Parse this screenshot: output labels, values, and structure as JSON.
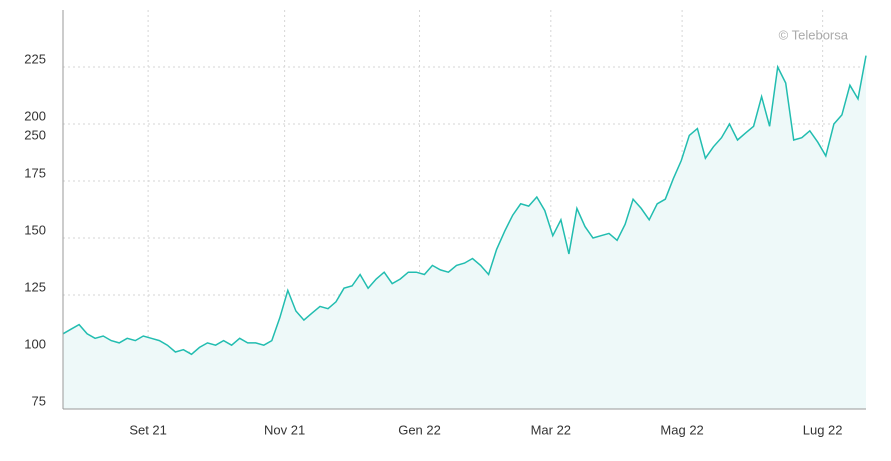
{
  "chart_data": {
    "type": "area",
    "watermark": "© Teleborsa",
    "stray_label": "250",
    "color": "#22bdb0",
    "fill": "#eef9f9",
    "grid": true,
    "xlim": [
      0,
      100
    ],
    "xticks": [
      {
        "value": 10.6,
        "label": "Set 21"
      },
      {
        "value": 27.6,
        "label": "Nov 21"
      },
      {
        "value": 44.4,
        "label": "Gen 22"
      },
      {
        "value": 60.75,
        "label": "Mar 22"
      },
      {
        "value": 77.1,
        "label": "Mag 22"
      },
      {
        "value": 94.6,
        "label": "Lug 22"
      }
    ],
    "ylim": [
      75,
      250
    ],
    "yticks": [
      75,
      100,
      125,
      150,
      175,
      200,
      225
    ],
    "values": [
      108,
      110,
      112,
      108,
      106,
      107,
      105,
      104,
      106,
      105,
      107,
      106,
      105,
      103,
      100,
      101,
      99,
      102,
      104,
      103,
      105,
      103,
      106,
      104,
      104,
      103,
      105,
      115,
      127,
      118,
      114,
      117,
      120,
      119,
      122,
      128,
      129,
      134,
      128,
      132,
      135,
      130,
      132,
      135,
      135,
      134,
      138,
      136,
      135,
      138,
      139,
      141,
      138,
      134,
      145,
      153,
      160,
      165,
      164,
      168,
      162,
      151,
      158,
      143,
      163,
      155,
      150,
      151,
      152,
      149,
      156,
      167,
      163,
      158,
      165,
      167,
      176,
      184,
      195,
      198,
      185,
      190,
      194,
      200,
      193,
      196,
      199,
      212,
      199,
      225,
      218,
      193,
      194,
      197,
      192,
      186,
      200,
      204,
      217,
      211,
      230
    ]
  }
}
